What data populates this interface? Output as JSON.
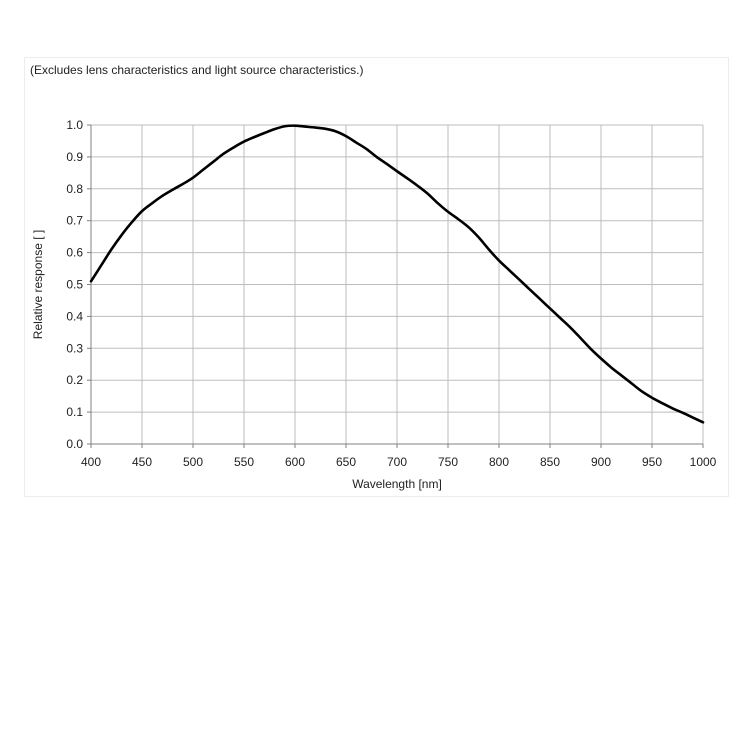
{
  "chart_data": {
    "type": "line",
    "title": "",
    "note": "(Excludes lens characteristics and light source characteristics.)",
    "xlabel": "Wavelength [nm]",
    "ylabel": "Relative response [ ]",
    "xlim": [
      400,
      1000
    ],
    "ylim": [
      0,
      1
    ],
    "xticks": [
      400,
      450,
      500,
      550,
      600,
      650,
      700,
      750,
      800,
      850,
      900,
      950,
      1000
    ],
    "xtick_labels": [
      "400",
      "450",
      "500",
      "550",
      "600",
      "650",
      "700",
      "750",
      "800",
      "850",
      "900",
      "950",
      "1000"
    ],
    "yticks": [
      0,
      0.1,
      0.2,
      0.3,
      0.4,
      0.5,
      0.6,
      0.7,
      0.8,
      0.9,
      1.0
    ],
    "ytick_labels": [
      "0.0",
      "0.1",
      "0.2",
      "0.3",
      "0.4",
      "0.5",
      "0.6",
      "0.7",
      "0.8",
      "0.9",
      "1.0"
    ],
    "grid": true,
    "legend": "none",
    "colors": {
      "line": "#000000",
      "grid": "#bdbdbd",
      "axis": "#808080",
      "text": "#222222"
    },
    "series": [
      {
        "x": [
          400,
          410,
          420,
          430,
          440,
          450,
          460,
          470,
          480,
          490,
          500,
          510,
          520,
          530,
          540,
          550,
          560,
          570,
          580,
          590,
          600,
          610,
          620,
          630,
          640,
          650,
          660,
          670,
          680,
          690,
          700,
          710,
          720,
          730,
          740,
          750,
          760,
          770,
          780,
          790,
          800,
          810,
          820,
          830,
          840,
          850,
          860,
          870,
          880,
          890,
          900,
          910,
          920,
          930,
          940,
          950,
          960,
          970,
          980,
          990,
          1000
        ],
        "values": [
          0.51,
          0.56,
          0.61,
          0.655,
          0.695,
          0.73,
          0.755,
          0.778,
          0.797,
          0.815,
          0.835,
          0.86,
          0.885,
          0.91,
          0.93,
          0.948,
          0.962,
          0.975,
          0.987,
          0.996,
          0.998,
          0.995,
          0.992,
          0.988,
          0.98,
          0.965,
          0.945,
          0.925,
          0.9,
          0.878,
          0.855,
          0.833,
          0.81,
          0.785,
          0.755,
          0.728,
          0.705,
          0.68,
          0.648,
          0.61,
          0.575,
          0.545,
          0.515,
          0.485,
          0.455,
          0.425,
          0.395,
          0.365,
          0.332,
          0.298,
          0.268,
          0.24,
          0.215,
          0.19,
          0.165,
          0.145,
          0.128,
          0.112,
          0.098,
          0.083,
          0.068
        ]
      }
    ]
  }
}
